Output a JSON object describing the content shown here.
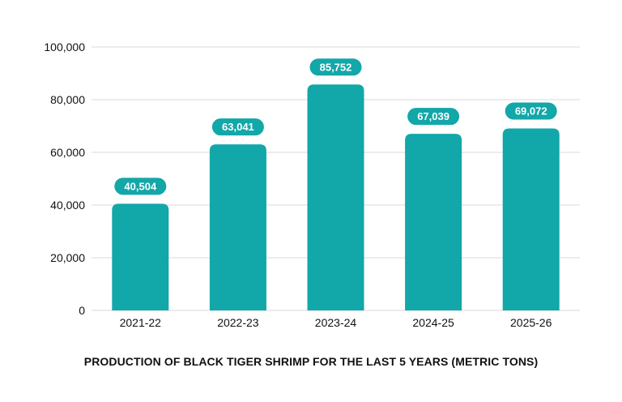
{
  "chart_data": {
    "type": "bar",
    "title": "PRODUCTION OF BLACK TIGER SHRIMP FOR THE LAST 5 YEARS (METRIC TONS)",
    "xlabel": "",
    "ylabel": "",
    "categories": [
      "2021-22",
      "2022-23",
      "2023-24",
      "2024-25",
      "2025-26"
    ],
    "values": [
      40504,
      63041,
      85752,
      67039,
      69072
    ],
    "data_labels": [
      "40,504",
      "63,041",
      "85,752",
      "67,039",
      "69,072"
    ],
    "ylim": [
      0,
      100000
    ],
    "yticks": [
      0,
      20000,
      40000,
      60000,
      80000,
      100000
    ],
    "ytick_labels": [
      "0",
      "20,000",
      "40,000",
      "60,000",
      "80,000",
      "100,000"
    ],
    "grid": true,
    "legend": "none",
    "colors": {
      "bar": "#12a7a8",
      "label_bg": "#12a7a8",
      "label_text": "#ffffff",
      "grid": "#d9d9d9",
      "axis_text": "#111111"
    }
  }
}
